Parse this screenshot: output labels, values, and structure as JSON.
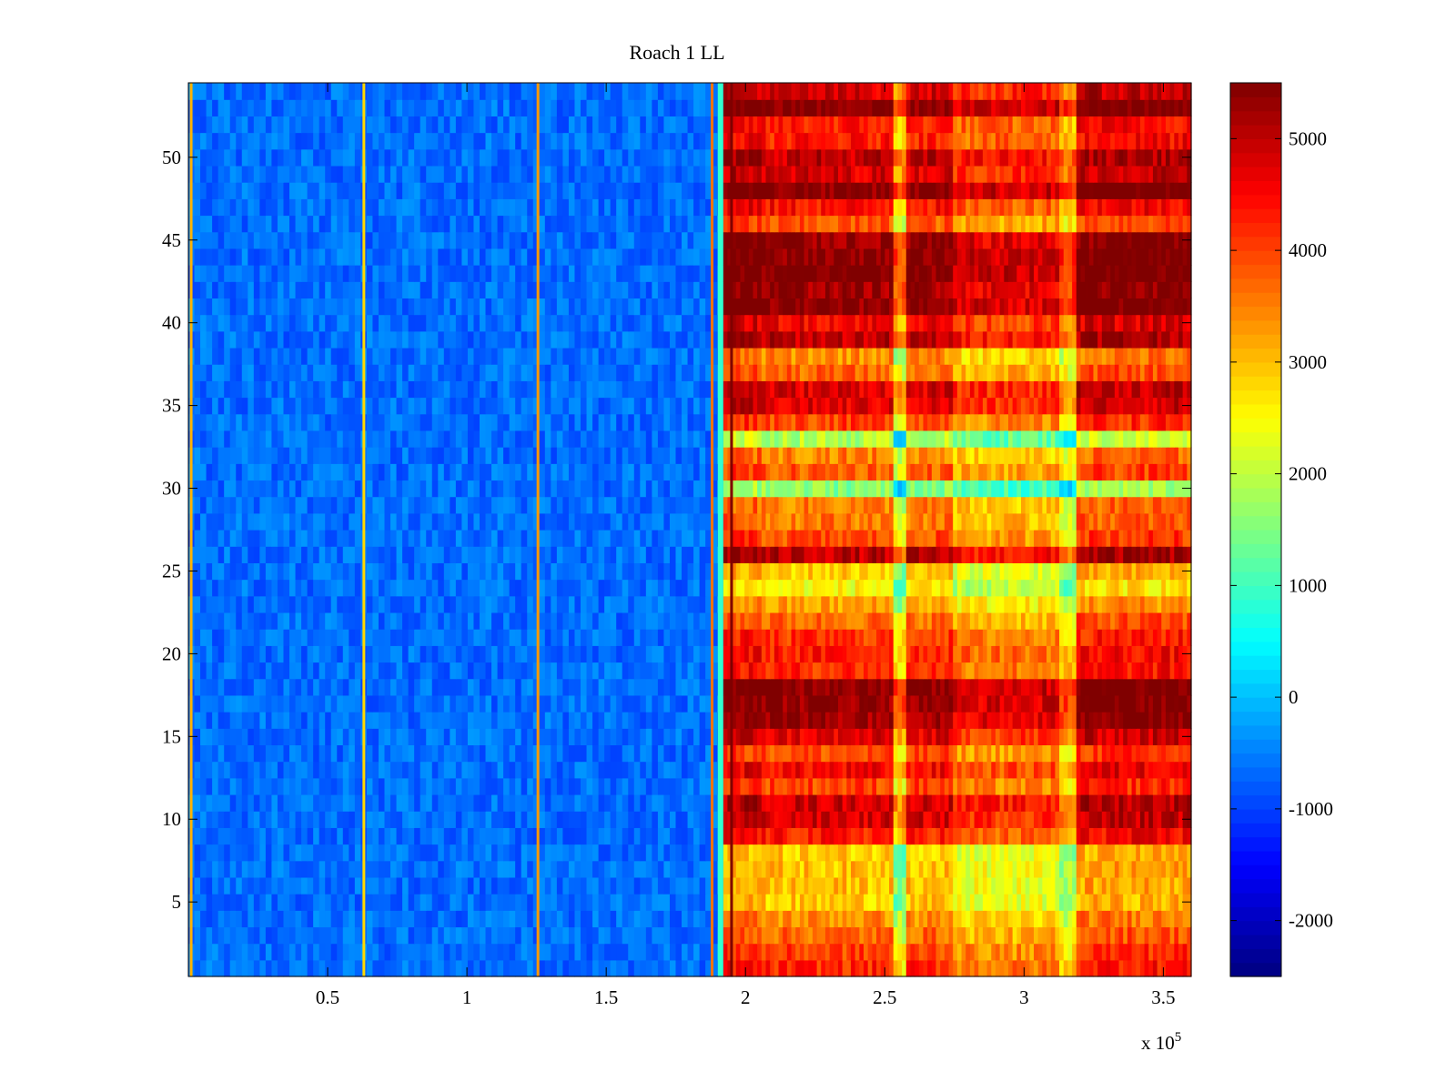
{
  "chart_data": {
    "type": "heatmap",
    "title": "Roach 1 LL",
    "xlabel": "",
    "ylabel": "",
    "x_multiplier": "x 10",
    "x_multiplier_exponent": "5",
    "xlim": [
      0,
      3.6
    ],
    "ylim": [
      0.5,
      54.5
    ],
    "x_ticks": [
      0.5,
      1,
      1.5,
      2,
      2.5,
      3,
      3.5
    ],
    "x_tick_labels": [
      "0.5",
      "1",
      "1.5",
      "2",
      "2.5",
      "3",
      "3.5"
    ],
    "y_ticks": [
      5,
      10,
      15,
      20,
      25,
      30,
      35,
      40,
      45,
      50
    ],
    "y_tick_labels": [
      "5",
      "10",
      "15",
      "20",
      "25",
      "30",
      "35",
      "40",
      "45",
      "50"
    ],
    "colormap": "jet",
    "clim": [
      -2500,
      5500
    ],
    "colorbar_ticks": [
      -2000,
      -1000,
      0,
      1000,
      2000,
      3000,
      4000,
      5000
    ],
    "colorbar_tick_labels": [
      "-2000",
      "-1000",
      "0",
      "1000",
      "2000",
      "3000",
      "4000",
      "5000"
    ],
    "rows": 54,
    "transition_x": 1.92,
    "low_region_value": -650,
    "vertical_lines": [
      {
        "x": 0.01,
        "value": 3100
      },
      {
        "x": 0.63,
        "value": 2800
      },
      {
        "x": 1.255,
        "value": 3300
      },
      {
        "x": 1.88,
        "value": 3600
      },
      {
        "x": 1.95,
        "value": 5500
      }
    ],
    "column_bands": [
      {
        "x0": 1.92,
        "x1": 2.05,
        "offset": 200
      },
      {
        "x0": 2.05,
        "x1": 2.53,
        "offset": 0
      },
      {
        "x0": 2.53,
        "x1": 2.58,
        "offset": -1500
      },
      {
        "x0": 2.58,
        "x1": 2.75,
        "offset": 0
      },
      {
        "x0": 2.75,
        "x1": 3.13,
        "offset": -600
      },
      {
        "x0": 3.13,
        "x1": 3.18,
        "offset": -1300
      },
      {
        "x0": 3.18,
        "x1": 3.6,
        "offset": 200
      }
    ],
    "row_values": [
      4200,
      4000,
      3700,
      3400,
      2900,
      3000,
      3000,
      2900,
      4300,
      4800,
      4900,
      4000,
      4500,
      3900,
      4700,
      5300,
      5400,
      5500,
      4200,
      4300,
      4100,
      3700,
      3200,
      2500,
      2900,
      5000,
      3900,
      3600,
      3500,
      1600,
      3800,
      3500,
      1900,
      4000,
      4700,
      4800,
      3700,
      3400,
      5000,
      4600,
      5400,
      5300,
      5500,
      5500,
      5300,
      3800,
      4400,
      5500,
      4800,
      5000,
      4300,
      4300,
      5500,
      4800
    ]
  }
}
